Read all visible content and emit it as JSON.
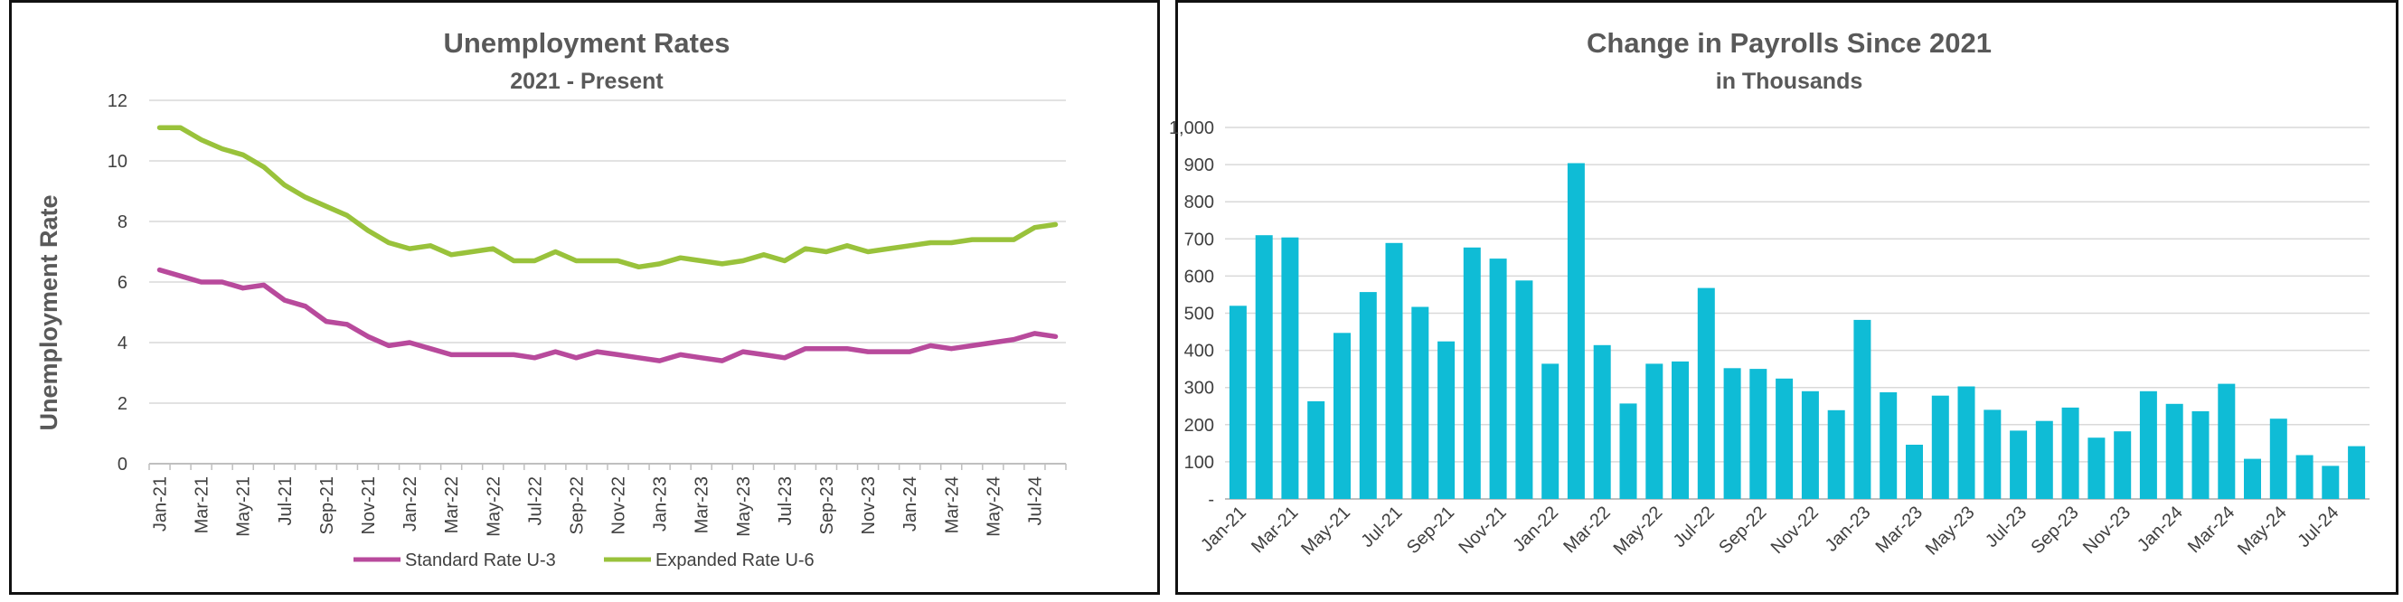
{
  "chart_data": [
    {
      "type": "line",
      "title": "Unemployment Rates",
      "subtitle": "2021 - Present",
      "xlabel": "",
      "ylabel": "Unemployment Rate",
      "ylim": [
        0,
        12
      ],
      "yticks": [
        "0",
        "2",
        "4",
        "6",
        "8",
        "10",
        "12"
      ],
      "grid": true,
      "legend_position": "bottom",
      "x": [
        "Jan-21",
        "Feb-21",
        "Mar-21",
        "Apr-21",
        "May-21",
        "Jun-21",
        "Jul-21",
        "Aug-21",
        "Sep-21",
        "Oct-21",
        "Nov-21",
        "Dec-21",
        "Jan-22",
        "Feb-22",
        "Mar-22",
        "Apr-22",
        "May-22",
        "Jun-22",
        "Jul-22",
        "Aug-22",
        "Sep-22",
        "Oct-22",
        "Nov-22",
        "Dec-22",
        "Jan-23",
        "Feb-23",
        "Mar-23",
        "Apr-23",
        "May-23",
        "Jun-23",
        "Jul-23",
        "Aug-23",
        "Sep-23",
        "Oct-23",
        "Nov-23",
        "Dec-23",
        "Jan-24",
        "Feb-24",
        "Mar-24",
        "Apr-24",
        "May-24",
        "Jun-24",
        "Jul-24",
        "Aug-24"
      ],
      "xtick_labels": [
        "Jan-21",
        "Mar-21",
        "May-21",
        "Jul-21",
        "Sep-21",
        "Nov-21",
        "Jan-22",
        "Mar-22",
        "May-22",
        "Jul-22",
        "Sep-22",
        "Nov-22",
        "Jan-23",
        "Mar-23",
        "May-23",
        "Jul-23",
        "Sep-23",
        "Nov-23",
        "Jan-24",
        "Mar-24",
        "May-24",
        "Jul-24"
      ],
      "series": [
        {
          "name": "Standard Rate U-3",
          "color": "#B84A9C",
          "values": [
            6.4,
            6.2,
            6.0,
            6.0,
            5.8,
            5.9,
            5.4,
            5.2,
            4.7,
            4.6,
            4.2,
            3.9,
            4.0,
            3.8,
            3.6,
            3.6,
            3.6,
            3.6,
            3.5,
            3.7,
            3.5,
            3.7,
            3.6,
            3.5,
            3.4,
            3.6,
            3.5,
            3.4,
            3.7,
            3.6,
            3.5,
            3.8,
            3.8,
            3.8,
            3.7,
            3.7,
            3.7,
            3.9,
            3.8,
            3.9,
            4.0,
            4.1,
            4.3,
            4.2
          ]
        },
        {
          "name": "Expanded Rate U-6",
          "color": "#99C23B",
          "values": [
            11.1,
            11.1,
            10.7,
            10.4,
            10.2,
            9.8,
            9.2,
            8.8,
            8.5,
            8.2,
            7.7,
            7.3,
            7.1,
            7.2,
            6.9,
            7.0,
            7.1,
            6.7,
            6.7,
            7.0,
            6.7,
            6.7,
            6.7,
            6.5,
            6.6,
            6.8,
            6.7,
            6.6,
            6.7,
            6.9,
            6.7,
            7.1,
            7.0,
            7.2,
            7.0,
            7.1,
            7.2,
            7.3,
            7.3,
            7.4,
            7.4,
            7.4,
            7.8,
            7.9
          ]
        }
      ]
    },
    {
      "type": "bar",
      "title": "Change in Payrolls Since 2021",
      "subtitle": "in Thousands",
      "xlabel": "",
      "ylabel": "",
      "ylim": [
        0,
        1000
      ],
      "yticks": [
        "-",
        "100",
        "200",
        "300",
        "400",
        "500",
        "600",
        "700",
        "800",
        "900",
        "1,000"
      ],
      "grid": true,
      "color": "#0FBCD6",
      "categories": [
        "Jan-21",
        "Feb-21",
        "Mar-21",
        "Apr-21",
        "May-21",
        "Jun-21",
        "Jul-21",
        "Aug-21",
        "Sep-21",
        "Oct-21",
        "Nov-21",
        "Dec-21",
        "Jan-22",
        "Feb-22",
        "Mar-22",
        "Apr-22",
        "May-22",
        "Jun-22",
        "Jul-22",
        "Aug-22",
        "Sep-22",
        "Oct-22",
        "Nov-22",
        "Dec-22",
        "Jan-23",
        "Feb-23",
        "Mar-23",
        "Apr-23",
        "May-23",
        "Jun-23",
        "Jul-23",
        "Aug-23",
        "Sep-23",
        "Oct-23",
        "Nov-23",
        "Dec-23",
        "Jan-24",
        "Feb-24",
        "Mar-24",
        "Apr-24",
        "May-24",
        "Jun-24",
        "Jul-24",
        "Aug-24"
      ],
      "xtick_labels": [
        "Jan-21",
        "Mar-21",
        "May-21",
        "Jul-21",
        "Sep-21",
        "Nov-21",
        "Jan-22",
        "Mar-22",
        "May-22",
        "Jul-22",
        "Sep-22",
        "Nov-22",
        "Jan-23",
        "Mar-23",
        "May-23",
        "Jul-23",
        "Sep-23",
        "Nov-23",
        "Jan-24",
        "Mar-24",
        "May-24",
        "Jul-24"
      ],
      "values": [
        520,
        710,
        704,
        263,
        447,
        557,
        689,
        517,
        424,
        677,
        647,
        588,
        364,
        904,
        414,
        257,
        364,
        370,
        568,
        352,
        350,
        324,
        290,
        239,
        482,
        287,
        146,
        278,
        303,
        240,
        184,
        210,
        246,
        165,
        182,
        290,
        256,
        236,
        310,
        108,
        216,
        118,
        89,
        142
      ]
    }
  ]
}
